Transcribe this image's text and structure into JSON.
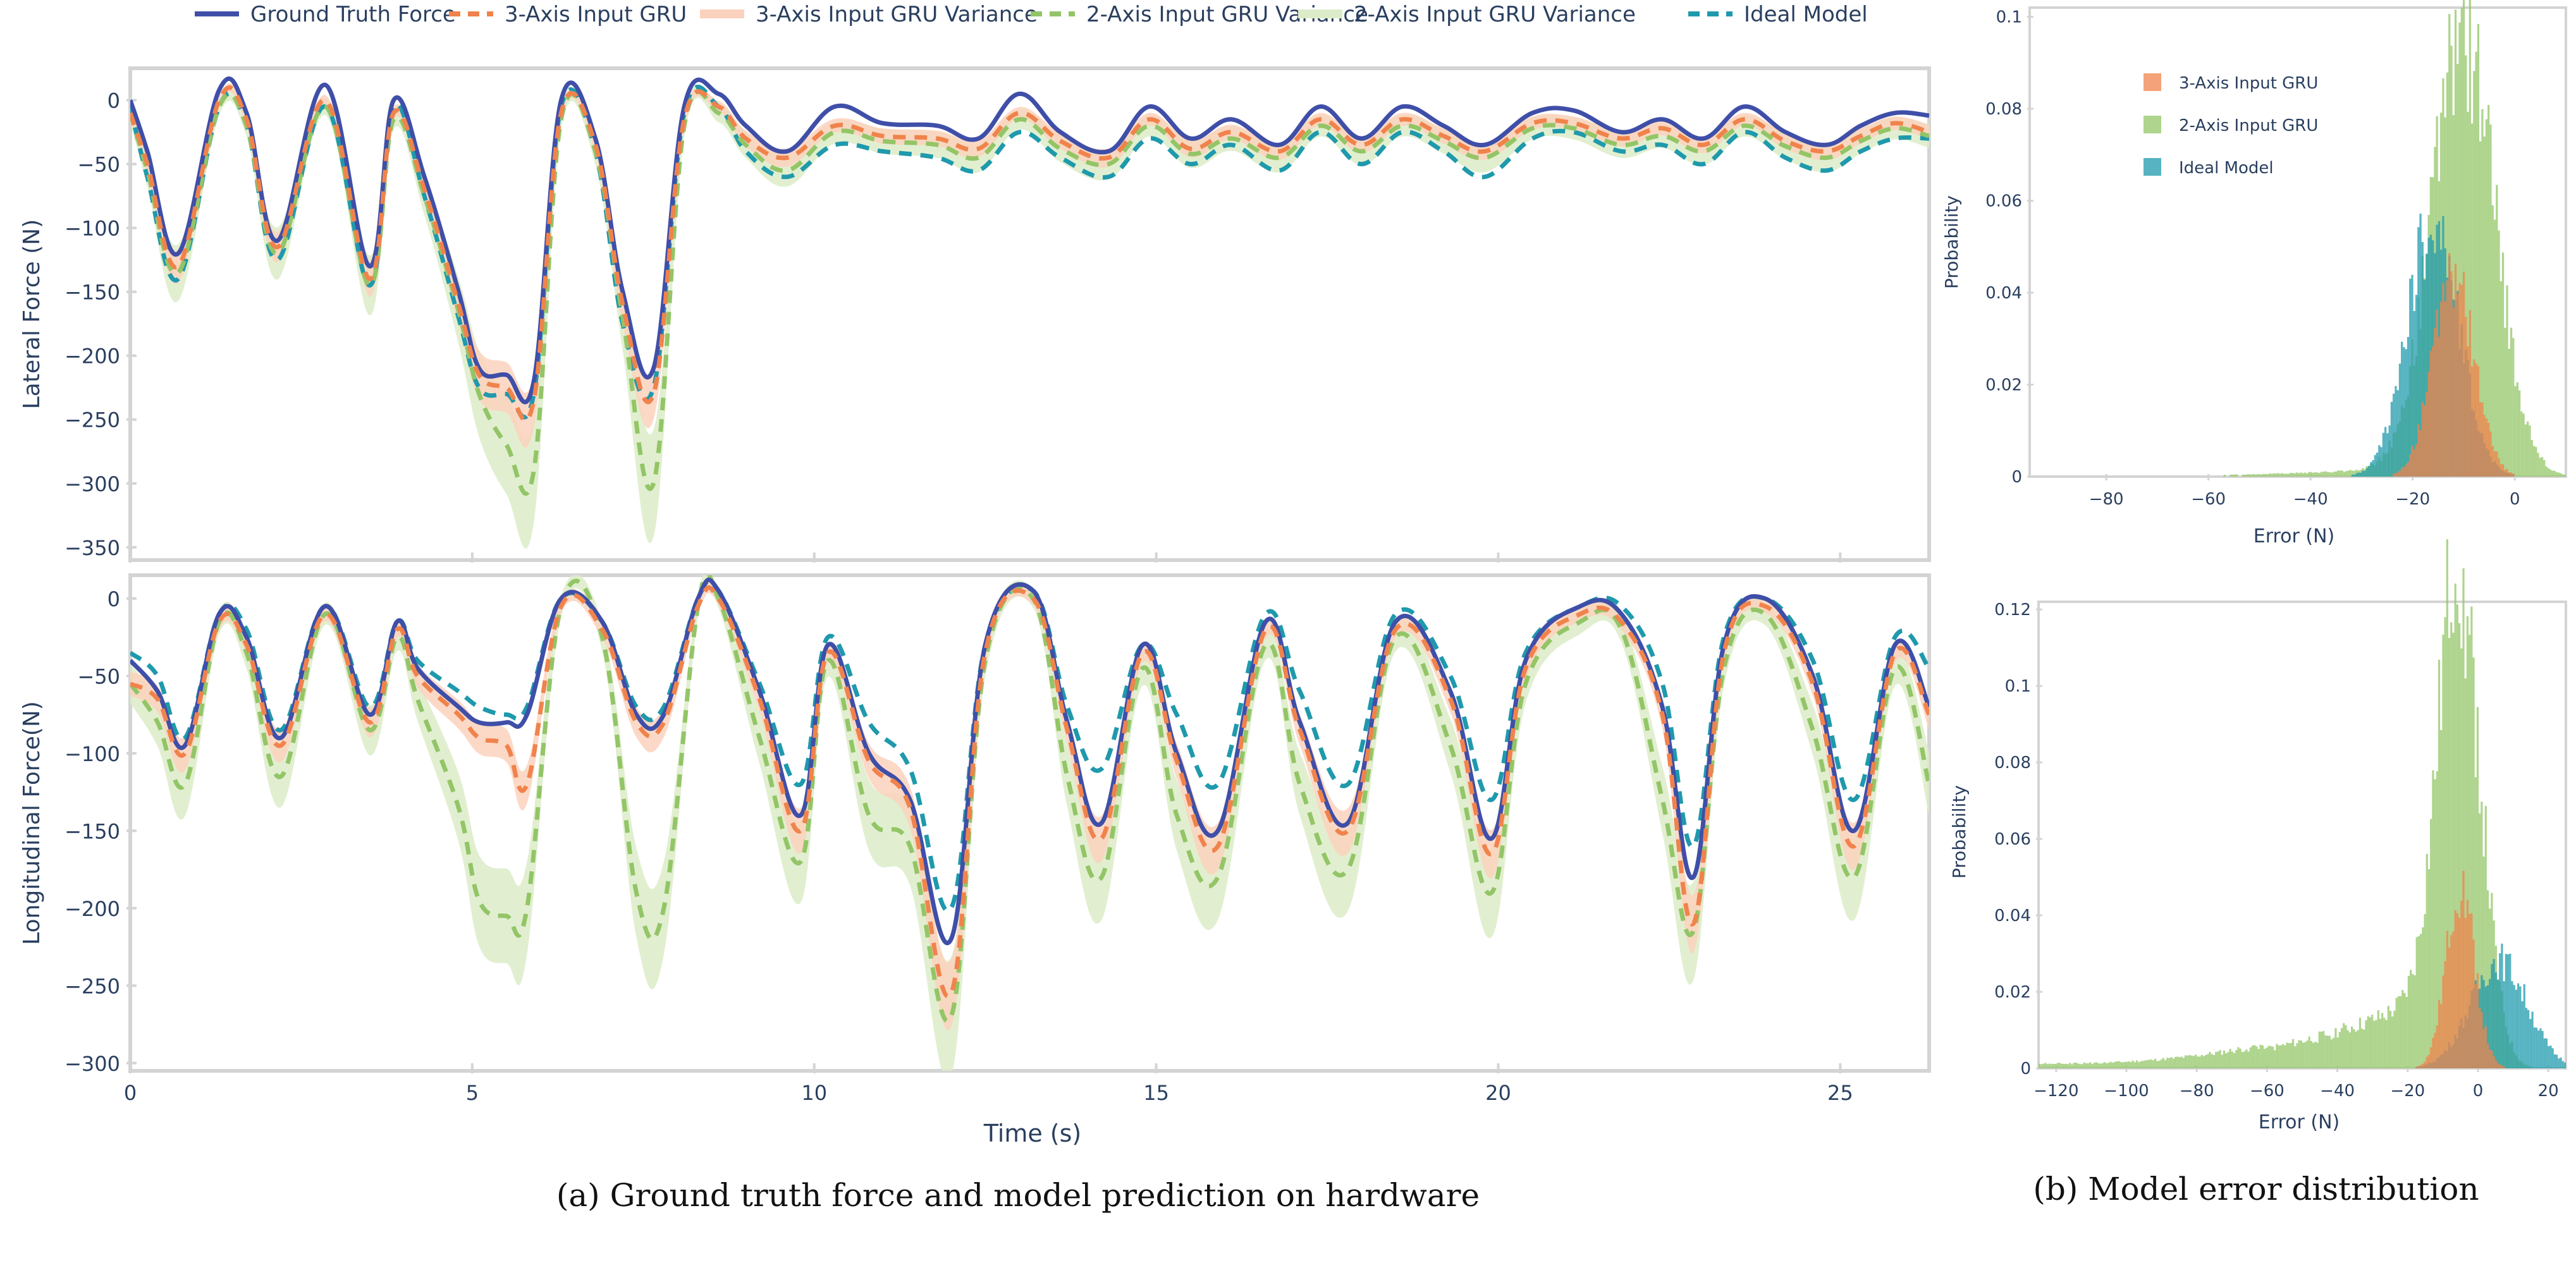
{
  "legend": [
    {
      "label": "Ground Truth Force",
      "color": "#3f4fa8",
      "style": "solid"
    },
    {
      "label": "3-Axis Input GRU",
      "color": "#f0834c",
      "style": "dash"
    },
    {
      "label": "3-Axis Input GRU Variance",
      "color": "#fbd2bd",
      "style": "band"
    },
    {
      "label": "2-Axis Input GRU Variance",
      "color": "#93c567",
      "style": "dash"
    },
    {
      "label": "2-Axis Input GRU Variance",
      "color": "#dcecc8",
      "style": "band"
    },
    {
      "label": "Ideal Model",
      "color": "#1f99ac",
      "style": "dash"
    }
  ],
  "colors": {
    "ground_truth": "#3f4fa8",
    "gru3": "#f0834c",
    "gru3_band": "#fbd2bd",
    "gru2": "#93c567",
    "gru2_band": "#dcecc8",
    "ideal": "#1f99ac",
    "axis": "#d4d4d4",
    "text": "#2a3f5f"
  },
  "captions": {
    "a": "(a) Ground truth force and model prediction on hardware",
    "b": "(b) Model error distribution"
  },
  "chart_data": [
    {
      "type": "line",
      "id": "lateral",
      "ylabel": "Lateral Force (N)",
      "xlabel": "",
      "xlim": [
        0,
        26.3
      ],
      "ylim": [
        -360,
        25
      ],
      "yticks": [
        0,
        -50,
        -100,
        -150,
        -200,
        -250,
        -300,
        -350
      ],
      "xticks": [
        0,
        5,
        10,
        15,
        20,
        25
      ],
      "x": [
        0,
        0.25,
        0.7,
        1.3,
        1.7,
        2.15,
        2.85,
        3.5,
        3.85,
        4.3,
        4.8,
        5.1,
        5.5,
        5.9,
        6.3,
        6.8,
        7.2,
        7.65,
        8.1,
        8.6,
        9.0,
        9.6,
        10.3,
        11.0,
        11.8,
        12.4,
        13.0,
        13.6,
        14.3,
        14.9,
        15.5,
        16.1,
        16.8,
        17.4,
        18.0,
        18.6,
        19.2,
        19.8,
        20.5,
        21.1,
        21.8,
        22.4,
        23.0,
        23.6,
        24.2,
        24.8,
        25.3,
        25.8,
        26.3
      ],
      "series": [
        {
          "name": "Ground Truth Force",
          "values": [
            0,
            -40,
            -120,
            8,
            -10,
            -110,
            12,
            -130,
            0,
            -60,
            -150,
            -210,
            -215,
            -220,
            0,
            -30,
            -150,
            -210,
            -5,
            5,
            -20,
            -40,
            -5,
            -18,
            -20,
            -30,
            5,
            -25,
            -40,
            -5,
            -30,
            -15,
            -35,
            -5,
            -30,
            -5,
            -20,
            -35,
            -10,
            -8,
            -25,
            -15,
            -30,
            -5,
            -25,
            -35,
            -20,
            -10,
            -12
          ]
        },
        {
          "name": "3-Axis Input GRU",
          "values": [
            -10,
            -50,
            -130,
            0,
            -15,
            -115,
            0,
            -140,
            -10,
            -70,
            -160,
            -215,
            -225,
            -235,
            -10,
            -35,
            -160,
            -230,
            -15,
            -5,
            -30,
            -45,
            -20,
            -28,
            -30,
            -38,
            -10,
            -32,
            -45,
            -15,
            -38,
            -25,
            -40,
            -15,
            -35,
            -15,
            -28,
            -40,
            -18,
            -18,
            -30,
            -22,
            -35,
            -15,
            -32,
            -40,
            -28,
            -18,
            -25
          ]
        },
        {
          "name": "2-Axis Input GRU",
          "values": [
            -10,
            -55,
            -135,
            -5,
            -20,
            -120,
            -5,
            -145,
            -15,
            -75,
            -165,
            -230,
            -270,
            -290,
            -15,
            -40,
            -170,
            -300,
            -20,
            -10,
            -35,
            -55,
            -25,
            -32,
            -35,
            -45,
            -15,
            -38,
            -50,
            -20,
            -42,
            -30,
            -45,
            -20,
            -40,
            -20,
            -32,
            -45,
            -22,
            -22,
            -35,
            -28,
            -40,
            -20,
            -36,
            -45,
            -32,
            -22,
            -28
          ]
        },
        {
          "name": "Ideal Model",
          "values": [
            -5,
            -60,
            -140,
            -5,
            -20,
            -125,
            -5,
            -145,
            -5,
            -75,
            -170,
            -225,
            -230,
            -230,
            -5,
            -40,
            -175,
            -225,
            -10,
            -5,
            -40,
            -60,
            -35,
            -40,
            -45,
            -55,
            -25,
            -45,
            -60,
            -30,
            -50,
            -35,
            -55,
            -25,
            -50,
            -25,
            -40,
            -60,
            -30,
            -25,
            -40,
            -35,
            -50,
            -25,
            -45,
            -55,
            -40,
            -30,
            -30
          ]
        }
      ]
    },
    {
      "type": "line",
      "id": "longitudinal",
      "ylabel": "Longitudinal   Force(N)",
      "xlabel": "Time (s)",
      "xlim": [
        0,
        26.3
      ],
      "ylim": [
        -305,
        15
      ],
      "yticks": [
        0,
        -50,
        -100,
        -150,
        -200,
        -250,
        -300
      ],
      "xticks": [
        0,
        5,
        10,
        15,
        20,
        25
      ],
      "x": [
        0,
        0.4,
        0.8,
        1.3,
        1.7,
        2.2,
        2.85,
        3.5,
        3.9,
        4.2,
        4.8,
        5.1,
        5.5,
        5.8,
        6.3,
        6.9,
        7.4,
        7.8,
        8.3,
        8.6,
        9.2,
        9.8,
        10.2,
        10.8,
        11.4,
        12.0,
        12.5,
        13.2,
        13.7,
        14.2,
        14.8,
        15.3,
        15.9,
        16.6,
        17.1,
        17.8,
        18.5,
        19.3,
        19.9,
        20.4,
        21.2,
        21.8,
        22.4,
        22.85,
        23.3,
        23.9,
        24.6,
        25.2,
        25.8,
        26.3
      ],
      "series": [
        {
          "name": "Ground Truth Force",
          "values": [
            -40,
            -60,
            -95,
            -10,
            -25,
            -90,
            -5,
            -75,
            -15,
            -45,
            -70,
            -80,
            -80,
            -75,
            0,
            -15,
            -75,
            -75,
            0,
            5,
            -60,
            -140,
            -30,
            -100,
            -130,
            -220,
            -30,
            5,
            -80,
            -145,
            -30,
            -100,
            -150,
            -15,
            -80,
            -145,
            -15,
            -60,
            -155,
            -40,
            -5,
            -10,
            -70,
            -180,
            -30,
            0,
            -50,
            -150,
            -30,
            -70
          ]
        },
        {
          "name": "3-Axis Input GRU",
          "values": [
            -55,
            -65,
            -100,
            -15,
            -30,
            -95,
            -10,
            -80,
            -20,
            -50,
            -75,
            -90,
            -95,
            -120,
            -5,
            -20,
            -80,
            -80,
            -5,
            0,
            -65,
            -150,
            -35,
            -105,
            -135,
            -255,
            -35,
            0,
            -85,
            -155,
            -35,
            -105,
            -160,
            -20,
            -85,
            -150,
            -20,
            -65,
            -165,
            -45,
            -10,
            -15,
            -75,
            -210,
            -35,
            -5,
            -55,
            -160,
            -35,
            -75
          ]
        },
        {
          "name": "2-Axis Input GRU",
          "values": [
            -55,
            -80,
            -120,
            -15,
            -35,
            -115,
            -10,
            -85,
            -25,
            -65,
            -135,
            -195,
            -205,
            -200,
            -5,
            -25,
            -190,
            -200,
            -5,
            0,
            -90,
            -170,
            -40,
            -140,
            -160,
            -270,
            -40,
            0,
            -115,
            -180,
            -45,
            -140,
            -180,
            -30,
            -120,
            -175,
            -25,
            -95,
            -190,
            -55,
            -15,
            -20,
            -130,
            -215,
            -45,
            -10,
            -85,
            -180,
            -45,
            -120
          ]
        },
        {
          "name": "Ideal Model",
          "values": [
            -35,
            -50,
            -90,
            -10,
            -20,
            -85,
            -5,
            -70,
            -15,
            -40,
            -60,
            -70,
            -75,
            -70,
            0,
            -15,
            -70,
            -70,
            0,
            5,
            -55,
            -120,
            -25,
            -80,
            -110,
            -200,
            -30,
            5,
            -70,
            -110,
            -30,
            -75,
            -120,
            -10,
            -60,
            -120,
            -10,
            -50,
            -130,
            -35,
            -5,
            -5,
            -55,
            -160,
            -25,
            0,
            -40,
            -130,
            -25,
            -45
          ]
        }
      ]
    },
    {
      "type": "histogram",
      "id": "hist_top",
      "ylabel": "Probability",
      "xlabel": "Error (N)",
      "xlim": [
        -95,
        10
      ],
      "ylim": [
        0,
        0.102
      ],
      "xticks": [
        -80,
        -60,
        -40,
        -20,
        0
      ],
      "yticks": [
        0,
        0.02,
        0.04,
        0.06,
        0.08,
        0.1
      ],
      "ytick_labels": [
        "0",
        "0.02",
        "0.04",
        "0.06",
        "0.08",
        "0.1"
      ],
      "legend": [
        "3-Axis Input GRU",
        "2-Axis Input GRU",
        "Ideal Model"
      ],
      "series": [
        {
          "name": "3-Axis Input GRU",
          "center": -12,
          "sigma": 4,
          "peak": 0.044
        },
        {
          "name": "2-Axis Input GRU",
          "center": -10,
          "sigma": 6,
          "peak": 0.097,
          "tail": 0.001
        },
        {
          "name": "Ideal Model",
          "center": -16,
          "sigma": 5,
          "peak": 0.055
        }
      ]
    },
    {
      "type": "histogram",
      "id": "hist_bottom",
      "ylabel": "Probability",
      "xlabel": "Error (N)",
      "xlim": [
        -125,
        25
      ],
      "ylim": [
        0,
        0.122
      ],
      "xticks": [
        -120,
        -100,
        -80,
        -60,
        -40,
        -20,
        0,
        20
      ],
      "yticks": [
        0,
        0.02,
        0.04,
        0.06,
        0.08,
        0.1,
        0.12
      ],
      "ytick_labels": [
        "0",
        "0.02",
        "0.04",
        "0.06",
        "0.08",
        "0.1",
        "0.12"
      ],
      "series": [
        {
          "name": "3-Axis Input GRU",
          "center": -5,
          "sigma": 4,
          "peak": 0.048
        },
        {
          "name": "2-Axis Input GRU",
          "center": -5,
          "sigma": 6,
          "peak": 0.12,
          "tail": 0.02
        },
        {
          "name": "Ideal Model",
          "center": 6,
          "sigma": 8,
          "peak": 0.028
        }
      ]
    }
  ]
}
